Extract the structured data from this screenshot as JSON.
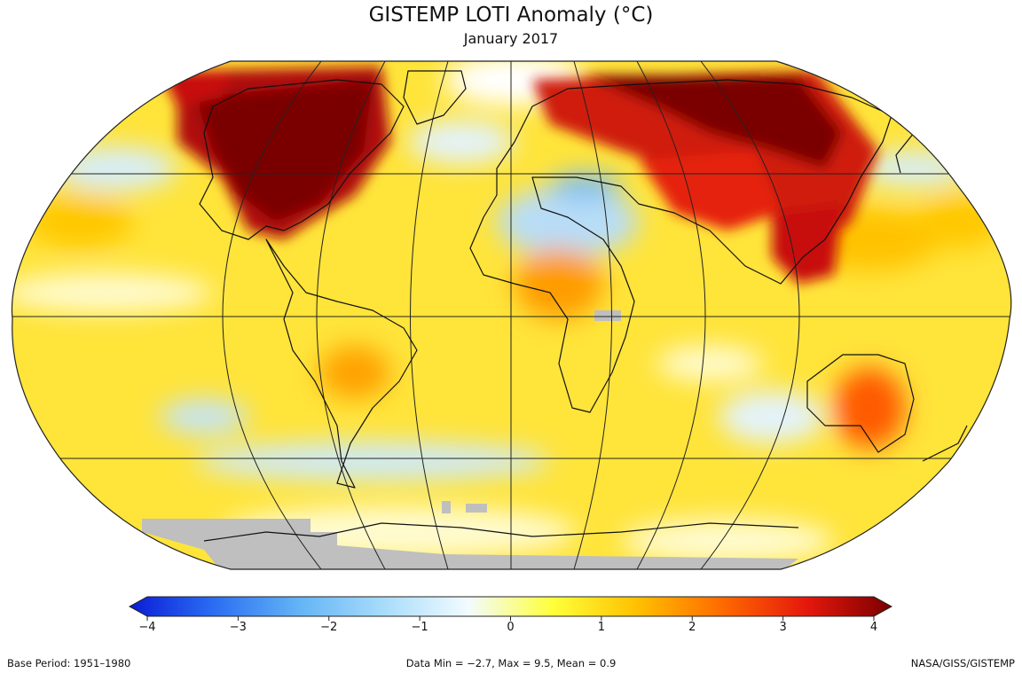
{
  "title": "GISTEMP LOTI Anomaly (°C)",
  "subtitle": "January 2017",
  "colorbar": {
    "min": -4,
    "max": 4,
    "ticks": [
      "−4",
      "−3",
      "−2",
      "−1",
      "0",
      "1",
      "2",
      "3",
      "4"
    ],
    "colors": [
      "#0a1cd6",
      "#2b6ef2",
      "#63b4f5",
      "#a8dcfb",
      "#f2fbff",
      "#ffff3a",
      "#ffc000",
      "#ff6a00",
      "#e5170c",
      "#7a0000"
    ]
  },
  "footer": {
    "base_period": "Base Period: 1951–1980",
    "stats": "Data Min = −2.7, Max = 9.5, Mean = 0.9",
    "credit": "NASA/GISS/GISTEMP"
  },
  "map": {
    "projection": "Robinson",
    "missing_color": "#bfbfbf",
    "ocean_base_color": "#ffe24a"
  }
}
